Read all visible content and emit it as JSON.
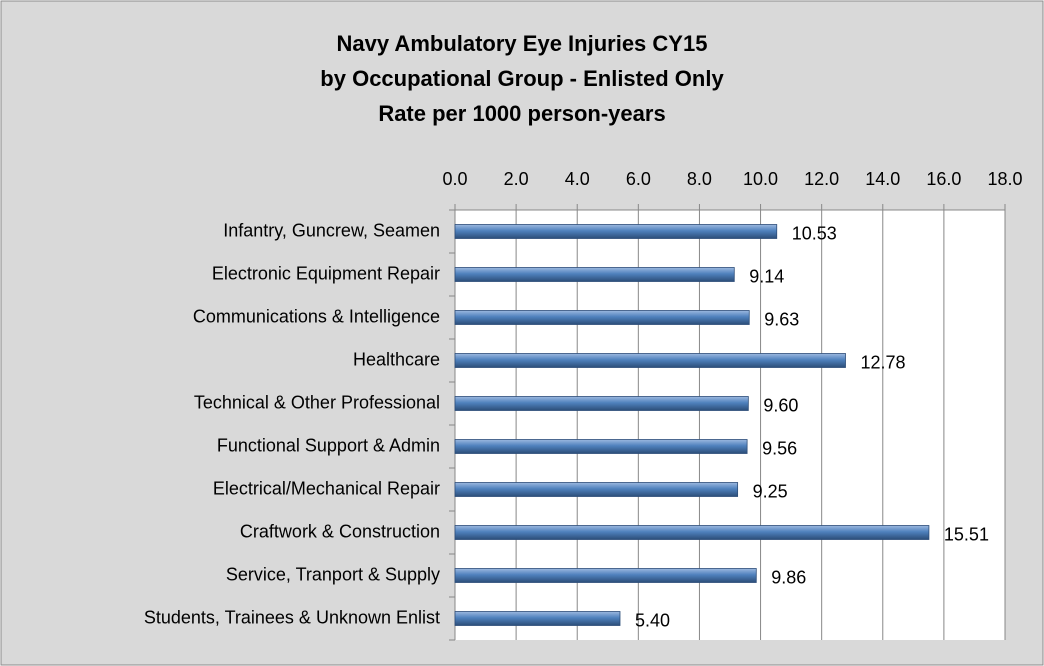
{
  "chart_data": {
    "type": "bar",
    "orientation": "horizontal",
    "title": [
      "Navy Ambulatory Eye Injuries CY15",
      "by Occupational Group - Enlisted Only",
      "Rate per 1000 person-years"
    ],
    "categories": [
      "Infantry, Guncrew, Seamen",
      "Electronic Equipment Repair",
      "Communications & Intelligence",
      "Healthcare",
      "Technical & Other Professional",
      "Functional Support & Admin",
      "Electrical/Mechanical Repair",
      "Craftwork & Construction",
      "Service, Tranport & Supply",
      "Students, Trainees & Unknown Enlist"
    ],
    "values": [
      10.53,
      9.14,
      9.63,
      12.78,
      9.6,
      9.56,
      9.25,
      15.51,
      9.86,
      5.4
    ],
    "value_labels": [
      "10.53",
      "9.14",
      "9.63",
      "12.78",
      "9.60",
      "9.56",
      "9.25",
      "15.51",
      "9.86",
      "5.40"
    ],
    "color": "#4f81bd",
    "xlim": [
      0,
      18
    ],
    "xticks": [
      {
        "value": 0,
        "label": "0.0"
      },
      {
        "value": 2,
        "label": "2.0"
      },
      {
        "value": 4,
        "label": "4.0"
      },
      {
        "value": 6,
        "label": "6.0"
      },
      {
        "value": 8,
        "label": "8.0"
      },
      {
        "value": 10,
        "label": "10.0"
      },
      {
        "value": 12,
        "label": "12.0"
      },
      {
        "value": 14,
        "label": "14.0"
      },
      {
        "value": 16,
        "label": "16.0"
      },
      {
        "value": 18,
        "label": "18.0"
      }
    ],
    "grid": true
  }
}
